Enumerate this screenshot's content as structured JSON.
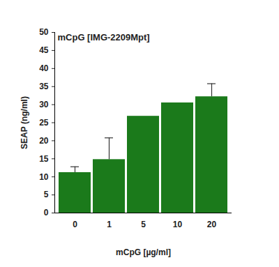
{
  "chart_data": {
    "type": "bar",
    "title": "mCpG [IMG-2209Mpt]",
    "x_label": "mCpG [µg/ml]",
    "y_label": "SEAP (ng/ml)",
    "categories": [
      "0",
      "1",
      "5",
      "10",
      "20"
    ],
    "values": [
      11.2,
      14.8,
      26.8,
      30.5,
      32.2
    ],
    "errors": [
      1.6,
      6.0,
      0,
      0,
      3.6
    ],
    "color": "#1b7a1b",
    "ylim": [
      0,
      50
    ],
    "yticks": [
      0,
      5,
      10,
      15,
      20,
      25,
      30,
      35,
      40,
      45,
      50
    ],
    "grid": false
  }
}
